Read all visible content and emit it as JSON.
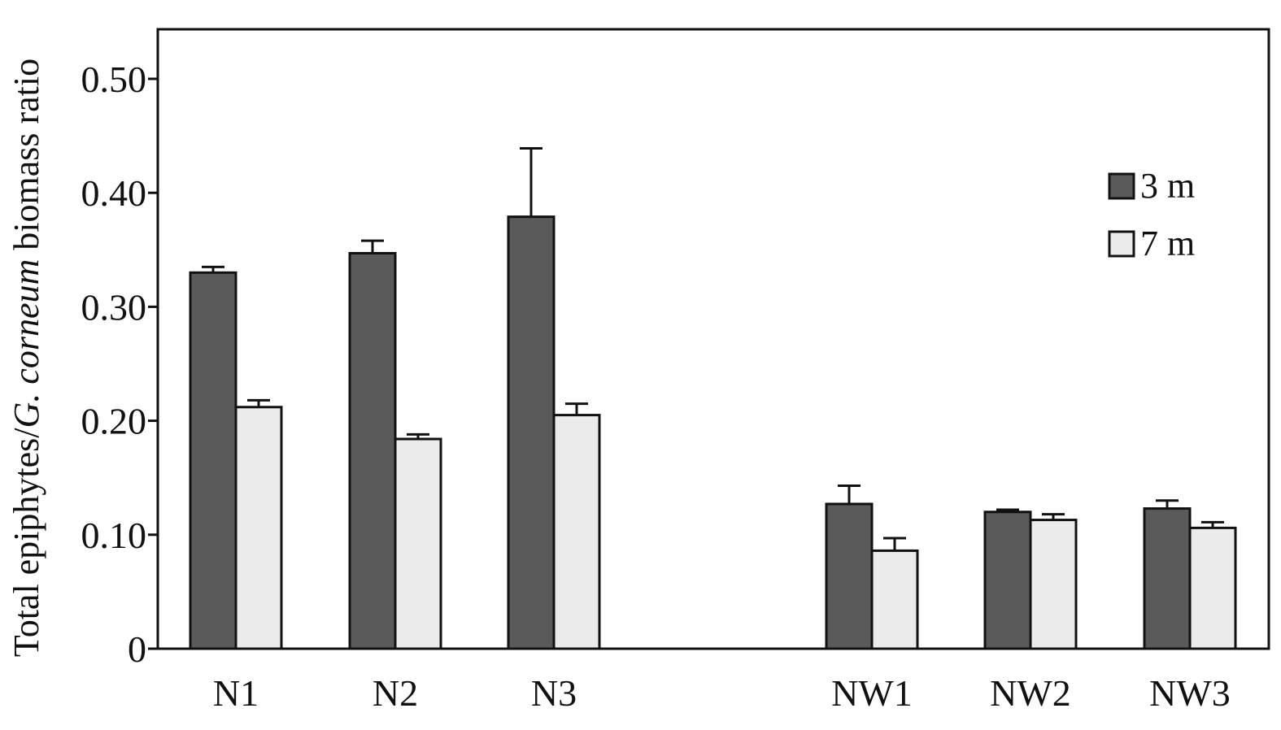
{
  "chart_data": {
    "type": "bar",
    "title": "",
    "xlabel": "",
    "ylabel_parts": [
      "Total epiphytes/",
      "G. corneum",
      " biomass ratio"
    ],
    "categories": [
      "N1",
      "N2",
      "N3",
      "NW1",
      "NW2",
      "NW3"
    ],
    "series": [
      {
        "name": "3 m",
        "color": "#5a5a5a",
        "values": [
          0.33,
          0.347,
          0.379,
          0.127,
          0.12,
          0.123
        ],
        "errors": [
          0.005,
          0.011,
          0.06,
          0.016,
          0.002,
          0.007
        ]
      },
      {
        "name": "7 m",
        "color": "#ebebeb",
        "values": [
          0.212,
          0.184,
          0.205,
          0.086,
          0.113,
          0.106
        ],
        "errors": [
          0.006,
          0.004,
          0.01,
          0.011,
          0.005,
          0.005
        ]
      }
    ],
    "ylim": [
      0,
      0.545
    ],
    "yticks": [
      0,
      0.1,
      0.2,
      0.3,
      0.4,
      0.5
    ],
    "ytick_labels": [
      "0",
      "0.10",
      "0.20",
      "0.30",
      "0.40",
      "0.50"
    ],
    "groups": [
      [
        "N1",
        "N2",
        "N3"
      ],
      [
        "NW1",
        "NW2",
        "NW3"
      ]
    ],
    "grid": false,
    "legend_position": "top-right"
  }
}
